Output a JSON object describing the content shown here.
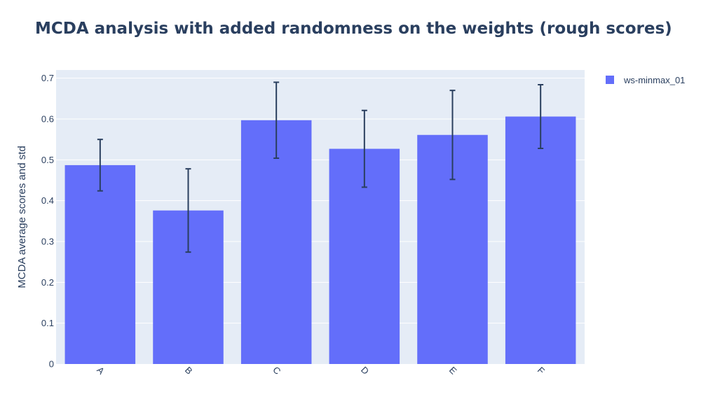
{
  "chart_data": {
    "type": "bar",
    "title": "MCDA analysis with added randomness on the weights (rough scores)",
    "xlabel": "",
    "ylabel": "MCDA average scores and std",
    "categories": [
      "A",
      "B",
      "C",
      "D",
      "E",
      "F"
    ],
    "series": [
      {
        "name": "ws-minmax_01",
        "values": [
          0.487,
          0.376,
          0.597,
          0.527,
          0.561,
          0.606
        ],
        "error": [
          0.063,
          0.102,
          0.093,
          0.094,
          0.109,
          0.078
        ]
      }
    ],
    "ylim": [
      0,
      0.72
    ],
    "yticks": [
      0,
      0.1,
      0.2,
      0.3,
      0.4,
      0.5,
      0.6,
      0.7
    ],
    "ytick_labels": [
      "0",
      "0.1",
      "0.2",
      "0.3",
      "0.4",
      "0.5",
      "0.6",
      "0.7"
    ],
    "grid": true,
    "legend_position": "top-right",
    "colors": {
      "bar": "#636efa",
      "plot_bg": "#e5ecf6",
      "grid": "#ffffff",
      "text": "#2a3f5f",
      "error_bar": "#2a3f5f"
    }
  }
}
